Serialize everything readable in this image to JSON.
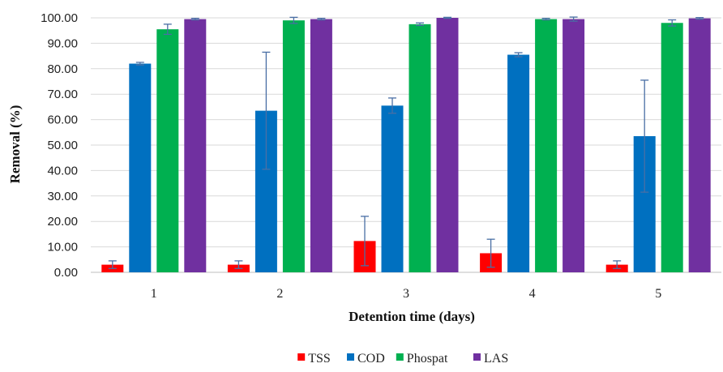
{
  "chart_data": {
    "type": "bar",
    "xlabel": "Detention time (days)",
    "ylabel": "Removal (%)",
    "ylim": [
      0,
      100
    ],
    "yticks": [
      "0.00",
      "10.00",
      "20.00",
      "30.00",
      "40.00",
      "50.00",
      "60.00",
      "70.00",
      "80.00",
      "90.00",
      "100.00"
    ],
    "categories": [
      "1",
      "2",
      "3",
      "4",
      "5"
    ],
    "grid": true,
    "legend_position": "bottom",
    "series": [
      {
        "name": "TSS",
        "color": "#ff0000",
        "values": [
          3.0,
          3.0,
          12.3,
          7.5,
          3.0
        ],
        "errors": [
          1.5,
          1.5,
          9.7,
          5.5,
          1.5
        ]
      },
      {
        "name": "COD",
        "color": "#0070c0",
        "values": [
          82.0,
          63.5,
          65.5,
          85.5,
          53.5
        ],
        "errors": [
          0.5,
          23.0,
          3.0,
          0.8,
          22.0
        ]
      },
      {
        "name": "Phospat",
        "color": "#00b050",
        "values": [
          95.5,
          99.0,
          97.5,
          99.5,
          98.0
        ],
        "errors": [
          2.0,
          1.2,
          0.5,
          0.3,
          1.2
        ]
      },
      {
        "name": "LAS",
        "color": "#7030a0",
        "values": [
          99.5,
          99.5,
          100.0,
          99.5,
          99.8
        ],
        "errors": [
          0.3,
          0.3,
          0.2,
          0.8,
          0.3
        ]
      }
    ]
  }
}
